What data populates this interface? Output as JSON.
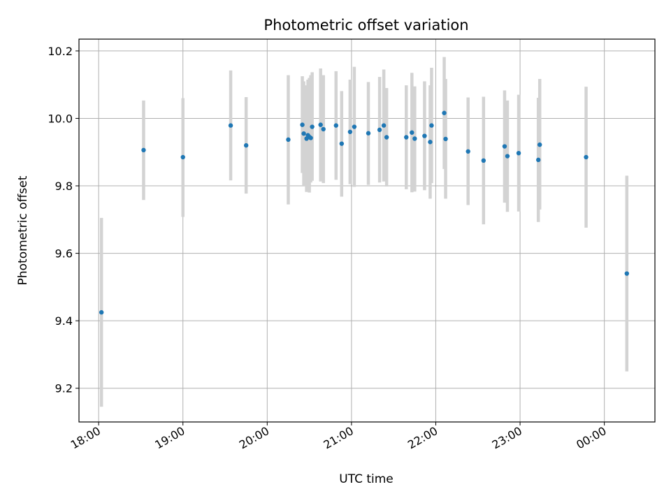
{
  "chart_data": {
    "type": "scatter",
    "title": "Photometric offset variation",
    "xlabel": "UTC time",
    "ylabel": "Photometric offset",
    "x_axis_kind": "time",
    "xlim": [
      "17:46",
      "00:36"
    ],
    "ylim": [
      9.1,
      10.235
    ],
    "x_ticks": [
      "18:00",
      "19:00",
      "20:00",
      "21:00",
      "22:00",
      "23:00",
      "00:00"
    ],
    "y_ticks": [
      9.2,
      9.4,
      9.6,
      9.8,
      10.0,
      10.2
    ],
    "grid": true,
    "point_color": "#1f77b4",
    "errorbar_color": "#d3d3d3",
    "points": [
      {
        "time": "18:02",
        "y": 9.425,
        "low": 9.145,
        "high": 9.705
      },
      {
        "time": "18:32",
        "y": 9.906,
        "low": 9.758,
        "high": 10.053
      },
      {
        "time": "19:00",
        "y": 9.885,
        "low": 9.708,
        "high": 10.06
      },
      {
        "time": "19:34",
        "y": 9.979,
        "low": 9.816,
        "high": 10.142
      },
      {
        "time": "19:45",
        "y": 9.92,
        "low": 9.777,
        "high": 10.063
      },
      {
        "time": "20:15",
        "y": 9.937,
        "low": 9.745,
        "high": 10.128
      },
      {
        "time": "20:25",
        "y": 9.981,
        "low": 9.838,
        "high": 10.125
      },
      {
        "time": "20:26",
        "y": 9.955,
        "low": 9.8,
        "high": 10.11
      },
      {
        "time": "20:28",
        "y": 9.94,
        "low": 9.782,
        "high": 10.098
      },
      {
        "time": "20:29",
        "y": 9.95,
        "low": 9.785,
        "high": 10.115
      },
      {
        "time": "20:30",
        "y": 9.945,
        "low": 9.78,
        "high": 10.12
      },
      {
        "time": "20:31",
        "y": 9.942,
        "low": 9.81,
        "high": 10.128
      },
      {
        "time": "20:32",
        "y": 9.975,
        "low": 9.815,
        "high": 10.137
      },
      {
        "time": "20:38",
        "y": 9.981,
        "low": 9.813,
        "high": 10.148
      },
      {
        "time": "20:40",
        "y": 9.968,
        "low": 9.808,
        "high": 10.128
      },
      {
        "time": "20:49",
        "y": 9.979,
        "low": 9.818,
        "high": 10.14
      },
      {
        "time": "20:53",
        "y": 9.925,
        "low": 9.768,
        "high": 10.081
      },
      {
        "time": "20:59",
        "y": 9.96,
        "low": 9.805,
        "high": 10.115
      },
      {
        "time": "21:02",
        "y": 9.975,
        "low": 9.797,
        "high": 10.153
      },
      {
        "time": "21:12",
        "y": 9.956,
        "low": 9.803,
        "high": 10.108
      },
      {
        "time": "21:20",
        "y": 9.966,
        "low": 9.81,
        "high": 10.123
      },
      {
        "time": "21:23",
        "y": 9.979,
        "low": 9.813,
        "high": 10.145
      },
      {
        "time": "21:25",
        "y": 9.944,
        "low": 9.798,
        "high": 10.09
      },
      {
        "time": "21:39",
        "y": 9.944,
        "low": 9.79,
        "high": 10.098
      },
      {
        "time": "21:43",
        "y": 9.958,
        "low": 9.781,
        "high": 10.135
      },
      {
        "time": "21:45",
        "y": 9.94,
        "low": 9.783,
        "high": 10.095
      },
      {
        "time": "21:52",
        "y": 9.948,
        "low": 9.787,
        "high": 10.11
      },
      {
        "time": "21:56",
        "y": 9.93,
        "low": 9.762,
        "high": 10.098
      },
      {
        "time": "21:57",
        "y": 9.979,
        "low": 9.808,
        "high": 10.15
      },
      {
        "time": "22:06",
        "y": 10.016,
        "low": 9.85,
        "high": 10.182
      },
      {
        "time": "22:07",
        "y": 9.939,
        "low": 9.762,
        "high": 10.117
      },
      {
        "time": "22:23",
        "y": 9.902,
        "low": 9.743,
        "high": 10.062
      },
      {
        "time": "22:34",
        "y": 9.875,
        "low": 9.686,
        "high": 10.064
      },
      {
        "time": "22:49",
        "y": 9.917,
        "low": 9.75,
        "high": 10.083
      },
      {
        "time": "22:51",
        "y": 9.888,
        "low": 9.723,
        "high": 10.053
      },
      {
        "time": "22:59",
        "y": 9.897,
        "low": 9.724,
        "high": 10.07
      },
      {
        "time": "23:13",
        "y": 9.877,
        "low": 9.693,
        "high": 10.061
      },
      {
        "time": "23:14",
        "y": 9.922,
        "low": 9.73,
        "high": 10.117
      },
      {
        "time": "23:47",
        "y": 9.885,
        "low": 9.676,
        "high": 10.094
      },
      {
        "time": "00:16",
        "y": 9.54,
        "low": 9.25,
        "high": 9.83
      }
    ]
  }
}
